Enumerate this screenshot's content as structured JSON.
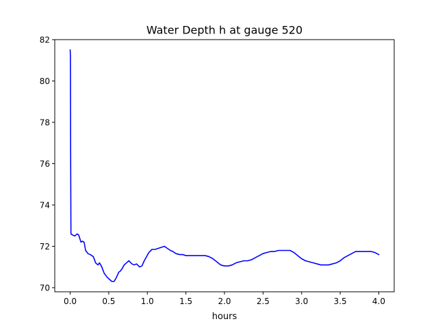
{
  "chart_data": {
    "type": "line",
    "title": "Water Depth h at gauge 520",
    "xlabel": "hours",
    "ylabel": "",
    "xlim": [
      -0.2,
      4.2
    ],
    "ylim": [
      69.8,
      82.0
    ],
    "xticks": [
      0.0,
      0.5,
      1.0,
      1.5,
      2.0,
      2.5,
      3.0,
      3.5,
      4.0
    ],
    "xtick_labels": [
      "0.0",
      "0.5",
      "1.0",
      "1.5",
      "2.0",
      "2.5",
      "3.0",
      "3.5",
      "4.0"
    ],
    "yticks": [
      70,
      72,
      74,
      76,
      78,
      80,
      82
    ],
    "ytick_labels": [
      "70",
      "72",
      "74",
      "76",
      "78",
      "80",
      "82"
    ],
    "grid": false,
    "legend": "none",
    "series": [
      {
        "color": "#0000ff",
        "x": [
          0.0,
          0.003,
          0.006,
          0.01,
          0.03,
          0.06,
          0.09,
          0.11,
          0.14,
          0.16,
          0.18,
          0.2,
          0.23,
          0.26,
          0.3,
          0.33,
          0.36,
          0.38,
          0.41,
          0.44,
          0.46,
          0.48,
          0.51,
          0.54,
          0.57,
          0.6,
          0.63,
          0.65,
          0.67,
          0.7,
          0.73,
          0.76,
          0.8,
          0.83,
          0.86,
          0.9,
          0.93,
          0.96,
          0.99,
          1.02,
          1.06,
          1.1,
          1.14,
          1.18,
          1.22,
          1.26,
          1.3,
          1.33,
          1.37,
          1.42,
          1.46,
          1.5,
          1.55,
          1.6,
          1.65,
          1.7,
          1.75,
          1.8,
          1.85,
          1.9,
          1.95,
          2.0,
          2.05,
          2.1,
          2.15,
          2.2,
          2.25,
          2.3,
          2.35,
          2.4,
          2.45,
          2.5,
          2.55,
          2.6,
          2.65,
          2.7,
          2.75,
          2.8,
          2.85,
          2.9,
          2.95,
          3.0,
          3.05,
          3.1,
          3.15,
          3.2,
          3.25,
          3.3,
          3.35,
          3.4,
          3.45,
          3.5,
          3.55,
          3.6,
          3.65,
          3.7,
          3.73,
          3.77,
          3.8,
          3.85,
          3.9,
          3.95,
          4.0
        ],
        "y": [
          81.5,
          81.2,
          76.5,
          72.6,
          72.55,
          72.5,
          72.6,
          72.55,
          72.2,
          72.25,
          72.2,
          71.8,
          71.65,
          71.6,
          71.5,
          71.2,
          71.1,
          71.2,
          71.0,
          70.7,
          70.6,
          70.5,
          70.4,
          70.3,
          70.3,
          70.5,
          70.75,
          70.8,
          70.9,
          71.1,
          71.2,
          71.3,
          71.15,
          71.1,
          71.15,
          71.0,
          71.05,
          71.3,
          71.5,
          71.7,
          71.85,
          71.85,
          71.9,
          71.95,
          72.0,
          71.9,
          71.8,
          71.75,
          71.65,
          71.6,
          71.6,
          71.55,
          71.55,
          71.55,
          71.55,
          71.55,
          71.55,
          71.5,
          71.4,
          71.25,
          71.1,
          71.05,
          71.05,
          71.1,
          71.2,
          71.25,
          71.3,
          71.3,
          71.35,
          71.45,
          71.55,
          71.65,
          71.7,
          71.75,
          71.75,
          71.8,
          71.8,
          71.8,
          71.8,
          71.7,
          71.55,
          71.4,
          71.3,
          71.25,
          71.2,
          71.15,
          71.1,
          71.1,
          71.1,
          71.15,
          71.2,
          71.3,
          71.45,
          71.55,
          71.65,
          71.75,
          71.75,
          71.75,
          71.75,
          71.75,
          71.75,
          71.7,
          71.6
        ]
      }
    ]
  }
}
